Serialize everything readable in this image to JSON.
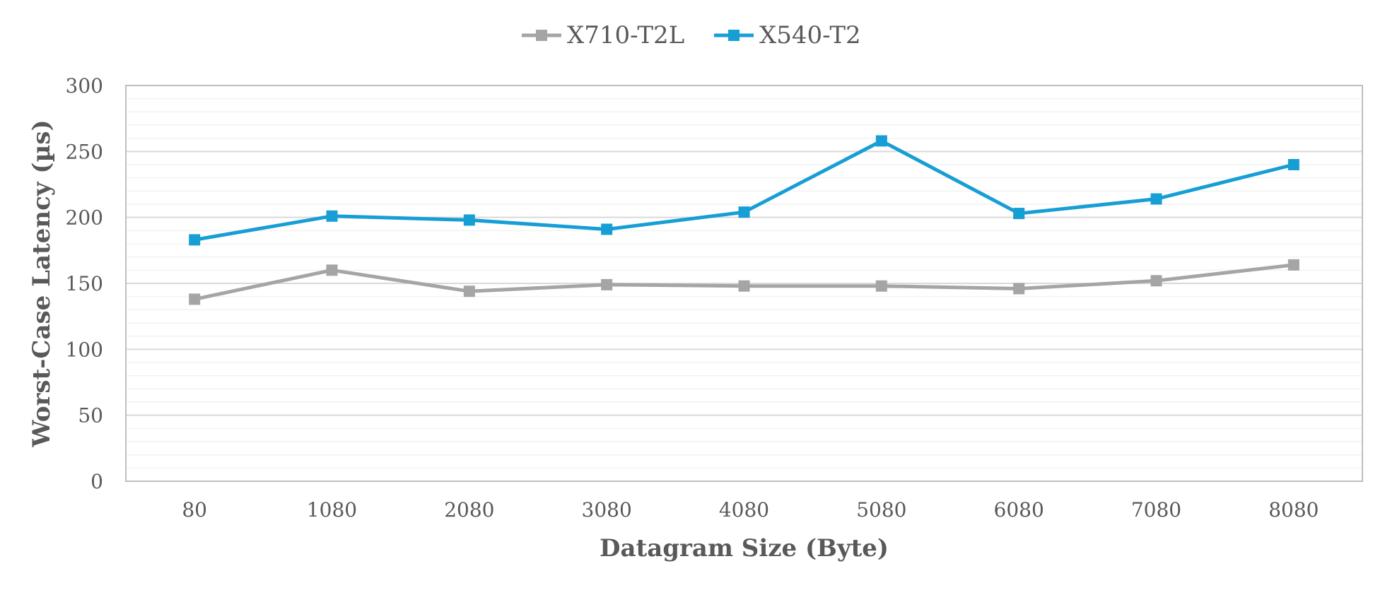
{
  "chart_data": {
    "type": "line",
    "title": "",
    "xlabel": "Datagram Size (Byte)",
    "ylabel": "Worst-Case Latency (µs)",
    "categories": [
      "80",
      "1080",
      "2080",
      "3080",
      "4080",
      "5080",
      "6080",
      "7080",
      "8080"
    ],
    "ylim": [
      0,
      300
    ],
    "yticks": [
      0,
      50,
      100,
      150,
      200,
      250,
      300
    ],
    "grid": true,
    "legend": "top-center",
    "series": [
      {
        "name": "X710-T2L",
        "color": "#A5A5A5",
        "values": [
          138,
          160,
          144,
          149,
          148,
          148,
          146,
          152,
          164
        ]
      },
      {
        "name": "X540-T2",
        "color": "#179ED4",
        "values": [
          183,
          201,
          198,
          191,
          204,
          258,
          203,
          214,
          240
        ]
      }
    ]
  }
}
